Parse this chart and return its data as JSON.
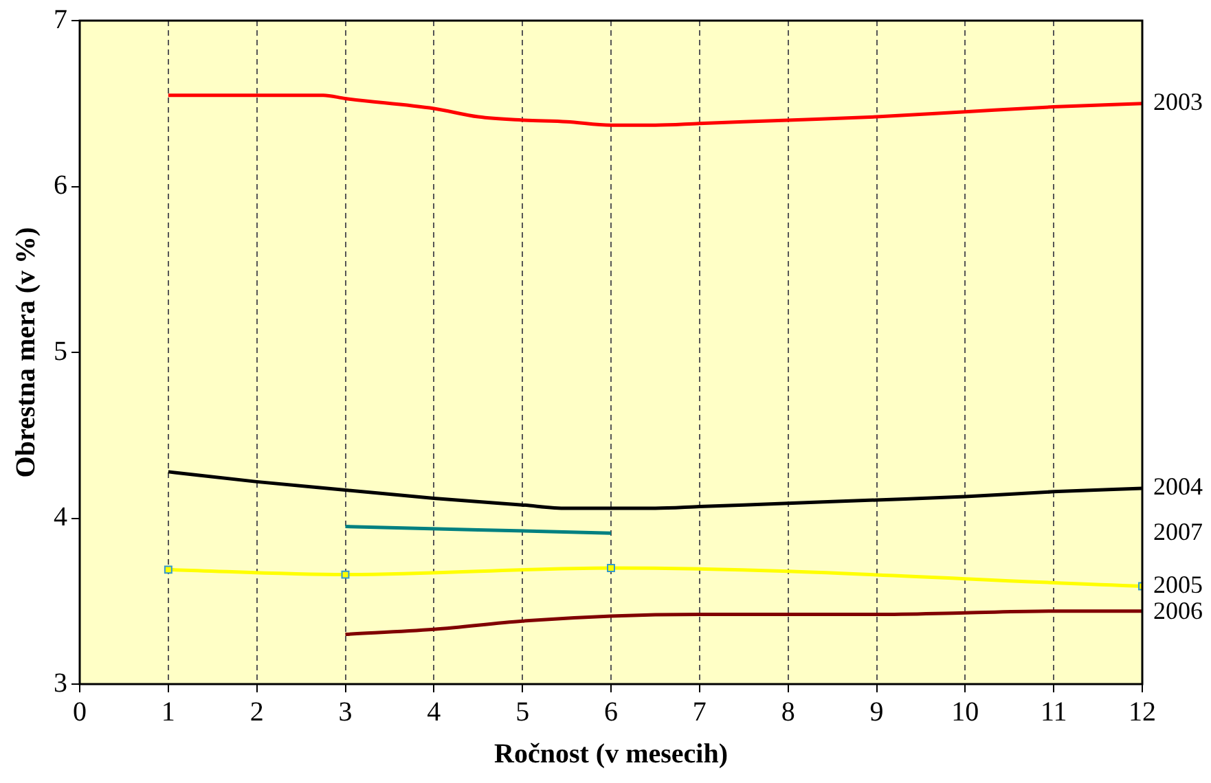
{
  "chart_data": {
    "type": "line",
    "xlabel": "Ročnost (v mesecih)",
    "ylabel": "Obrestna mera (v %)",
    "xlim": [
      0,
      12
    ],
    "xticks": [
      0,
      1,
      2,
      3,
      4,
      5,
      6,
      7,
      8,
      9,
      10,
      11,
      12
    ],
    "ylim": [
      3,
      7
    ],
    "yticks": [
      3,
      4,
      5,
      6,
      7
    ],
    "grid": "x",
    "legend": false,
    "marker": "none",
    "series": [
      {
        "name": "2003",
        "color": "#ff0000",
        "x": [
          1,
          2,
          2.75,
          3,
          4,
          4.5,
          5,
          5.5,
          6,
          6.5,
          7,
          8,
          9,
          10,
          11,
          12
        ],
        "values": [
          6.55,
          6.55,
          6.55,
          6.53,
          6.47,
          6.42,
          6.4,
          6.39,
          6.37,
          6.37,
          6.38,
          6.4,
          6.42,
          6.45,
          6.48,
          6.5
        ]
      },
      {
        "name": "2004",
        "color": "#000000",
        "x": [
          1,
          2,
          3,
          4,
          5,
          5.5,
          6.5,
          7,
          8,
          9,
          10,
          11,
          12
        ],
        "values": [
          4.28,
          4.22,
          4.17,
          4.12,
          4.08,
          4.06,
          4.06,
          4.07,
          4.09,
          4.11,
          4.13,
          4.16,
          4.18
        ]
      },
      {
        "name": "2007",
        "color": "#008080",
        "x": [
          3,
          6
        ],
        "values": [
          3.95,
          3.91
        ]
      },
      {
        "name": "2005",
        "color": "#ffff00",
        "marker": "square",
        "x": [
          1,
          3,
          6,
          12
        ],
        "values": [
          3.69,
          3.66,
          3.7,
          3.59
        ]
      },
      {
        "name": "2006",
        "color": "#800000",
        "x": [
          3,
          4,
          5,
          6,
          7,
          9,
          10,
          11,
          12
        ],
        "values": [
          3.3,
          3.33,
          3.38,
          3.41,
          3.42,
          3.42,
          3.43,
          3.44,
          3.44
        ]
      }
    ]
  }
}
